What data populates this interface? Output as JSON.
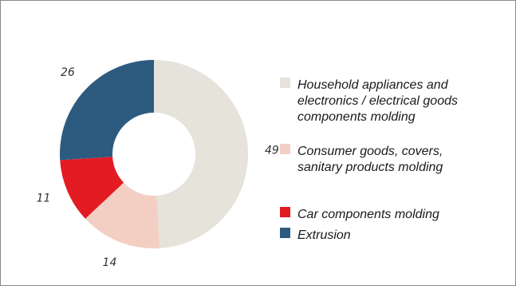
{
  "chart_data": {
    "type": "pie",
    "donut": true,
    "title": "",
    "labels": [
      "Household appliances and electronics / electrical goods components molding",
      "Consumer goods, covers, sanitary products molding",
      "Car components molding",
      "Extrusion"
    ],
    "values": [
      49,
      14,
      11,
      26
    ],
    "colors": [
      "#e6e3da",
      "#f3cfc3",
      "#e31c24",
      "#2d5b80"
    ],
    "legend": {
      "position": "right",
      "entries": [
        {
          "lines": [
            "Household appliances and",
            "electronics / electrical goods",
            "components molding"
          ],
          "color": "#e6e3da"
        },
        {
          "lines": [
            "Consumer goods, covers,",
            "sanitary products molding"
          ],
          "color": "#f3cfc3"
        },
        {
          "lines": [
            "Car components molding"
          ],
          "color": "#e31c24"
        },
        {
          "lines": [
            "Extrusion"
          ],
          "color": "#2d5b80"
        }
      ]
    }
  }
}
